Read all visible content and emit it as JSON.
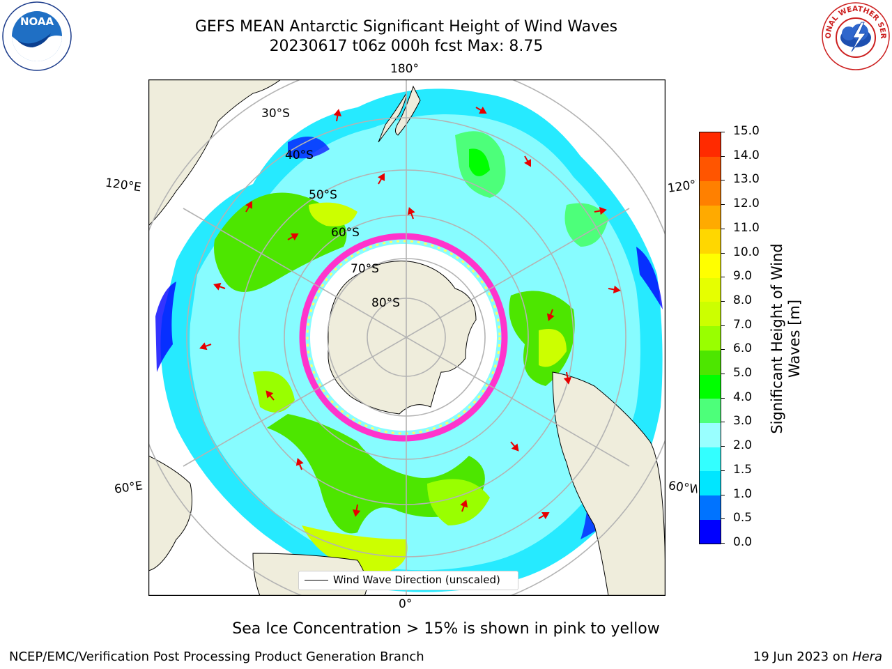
{
  "title": {
    "line1": "GEFS MEAN Antarctic Significant Height of Wind Waves",
    "line2": "20230617 t06z 000h fcst   Max: 8.75"
  },
  "logos": {
    "left": "NOAA",
    "right": "NATIONAL WEATHER SERVICE"
  },
  "map": {
    "projection": "south-polar-stereographic",
    "longitude_labels": {
      "top": "180°",
      "bottom": "0°",
      "upper_left": "120°E",
      "upper_right": "120°W",
      "lower_left": "60°E",
      "lower_right": "60°W"
    },
    "latitude_labels": [
      "30°S",
      "40°S",
      "50°S",
      "60°S",
      "70°S",
      "80°S"
    ],
    "legend": "Wind Wave Direction (unscaled)",
    "land_color": "#efeddc",
    "ice_edge_colors": [
      "#ff33cc",
      "#ffff66"
    ]
  },
  "colorbar": {
    "label_line1": "Significant Height of Wind",
    "label_line2": "Waves [m]",
    "ticks": [
      "0.0",
      "0.5",
      "1.0",
      "1.5",
      "2.0",
      "3.0",
      "4.0",
      "5.0",
      "6.0",
      "7.0",
      "8.0",
      "9.0",
      "10.0",
      "11.0",
      "12.0",
      "13.0",
      "14.0",
      "15.0"
    ],
    "colors": [
      "#0000ff",
      "#0073ff",
      "#00e6ff",
      "#33ffff",
      "#99ffff",
      "#4dff7a",
      "#00ff00",
      "#4de600",
      "#99ff00",
      "#ccff00",
      "#e6ff00",
      "#ffff00",
      "#ffd700",
      "#ffaa00",
      "#ff8000",
      "#ff5500",
      "#ff2a00",
      "#ff0000"
    ]
  },
  "caption": "Sea Ice Concentration > 15% is shown in pink to yellow",
  "footer": {
    "left": "NCEP/EMC/Verification Post Processing Product Generation Branch",
    "right_prefix": "19 Jun 2023 on ",
    "right_italic": "Hera"
  }
}
